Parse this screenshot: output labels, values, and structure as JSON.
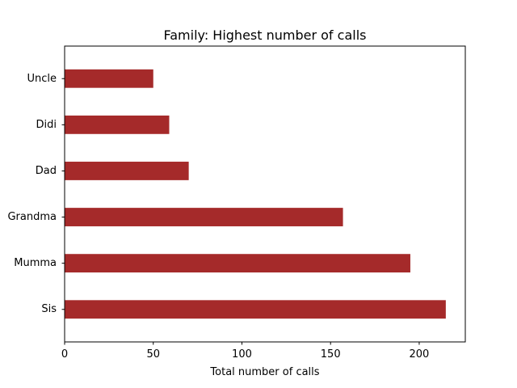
{
  "chart_data": {
    "type": "bar",
    "orientation": "horizontal",
    "title": "Family: Highest number of calls",
    "xlabel": "Total number of calls",
    "ylabel": "",
    "categories": [
      "Sis",
      "Mumma",
      "Grandma",
      "Dad",
      "Didi",
      "Uncle"
    ],
    "values": [
      215,
      195,
      157,
      70,
      59,
      50
    ],
    "xlim": [
      0,
      226
    ],
    "xticks": [
      0,
      50,
      100,
      150,
      200
    ],
    "grid": false,
    "legend": "none",
    "bar_color": "#a52a2a"
  }
}
